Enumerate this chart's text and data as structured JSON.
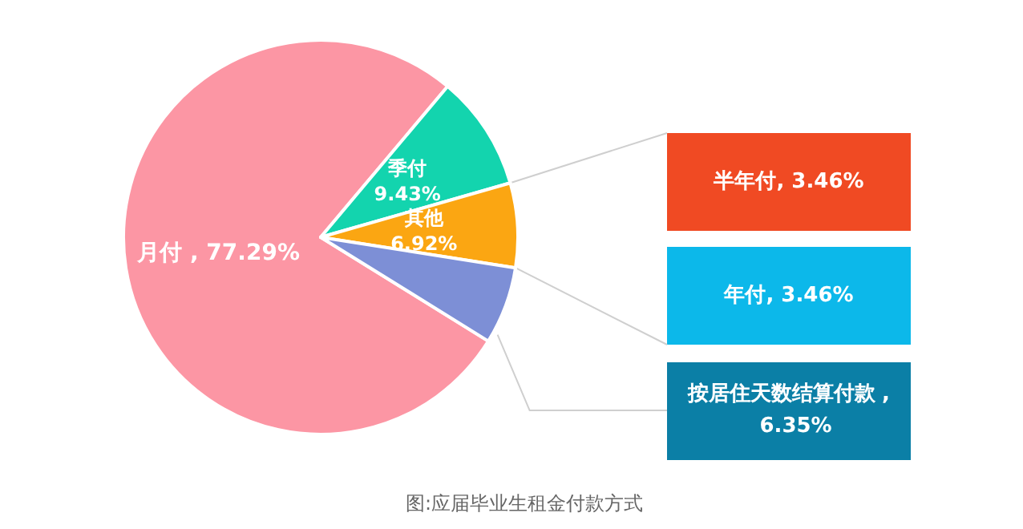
{
  "chart_data": {
    "type": "pie",
    "categories": [
      "月付",
      "季付",
      "其他",
      "按居住天数结算付款"
    ],
    "values": [
      77.29,
      9.43,
      6.92,
      6.35
    ],
    "colors": [
      "#fc96a4",
      "#13d4ae",
      "#fba612",
      "#7d8fd6"
    ],
    "value_labels": [
      ", 77.29%",
      "9.43%",
      "6.92%",
      ", 6.35%"
    ],
    "annotations": [
      "半年付, 3.46%",
      "年付, 3.46%",
      "图:应届毕业生租金付款方式"
    ]
  }
}
